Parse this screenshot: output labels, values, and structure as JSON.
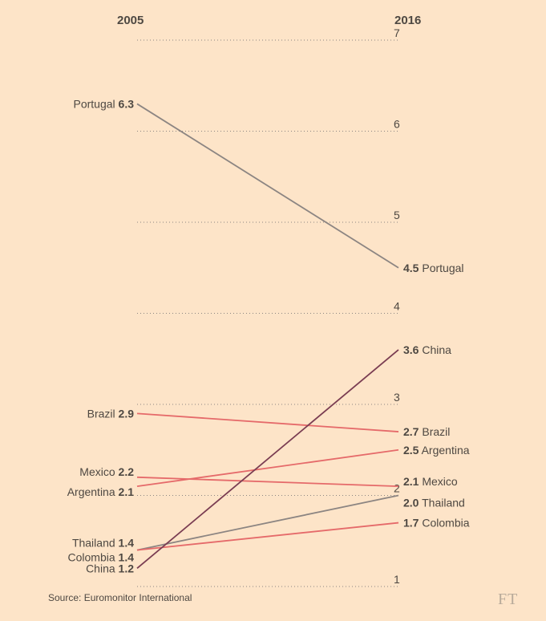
{
  "chart_data": {
    "type": "line",
    "x": [
      "2005",
      "2016"
    ],
    "ylim": [
      1,
      7
    ],
    "yticks": [
      1,
      2,
      3,
      4,
      5,
      6,
      7
    ],
    "grid": true,
    "series": [
      {
        "name": "Portugal",
        "values": [
          6.3,
          4.5
        ],
        "start_label": "6.3",
        "end_label": "4.5",
        "color": "#8c8582"
      },
      {
        "name": "China",
        "values": [
          1.2,
          3.6
        ],
        "start_label": "1.2",
        "end_label": "3.6",
        "color": "#7a3d52"
      },
      {
        "name": "Brazil",
        "values": [
          2.9,
          2.7
        ],
        "start_label": "2.9",
        "end_label": "2.7",
        "color": "#e56a6a"
      },
      {
        "name": "Argentina",
        "values": [
          2.1,
          2.5
        ],
        "start_label": "2.1",
        "end_label": "2.5",
        "color": "#e56a6a"
      },
      {
        "name": "Mexico",
        "values": [
          2.2,
          2.1
        ],
        "start_label": "2.2",
        "end_label": "2.1",
        "color": "#e56a6a"
      },
      {
        "name": "Thailand",
        "values": [
          1.4,
          2.0
        ],
        "start_label": "1.4",
        "end_label": "2.0",
        "color": "#8c8582"
      },
      {
        "name": "Colombia",
        "values": [
          1.4,
          1.7
        ],
        "start_label": "1.4",
        "end_label": "1.7",
        "color": "#e56a6a"
      }
    ]
  },
  "source": "Source: Euromonitor International",
  "brand": "FT"
}
